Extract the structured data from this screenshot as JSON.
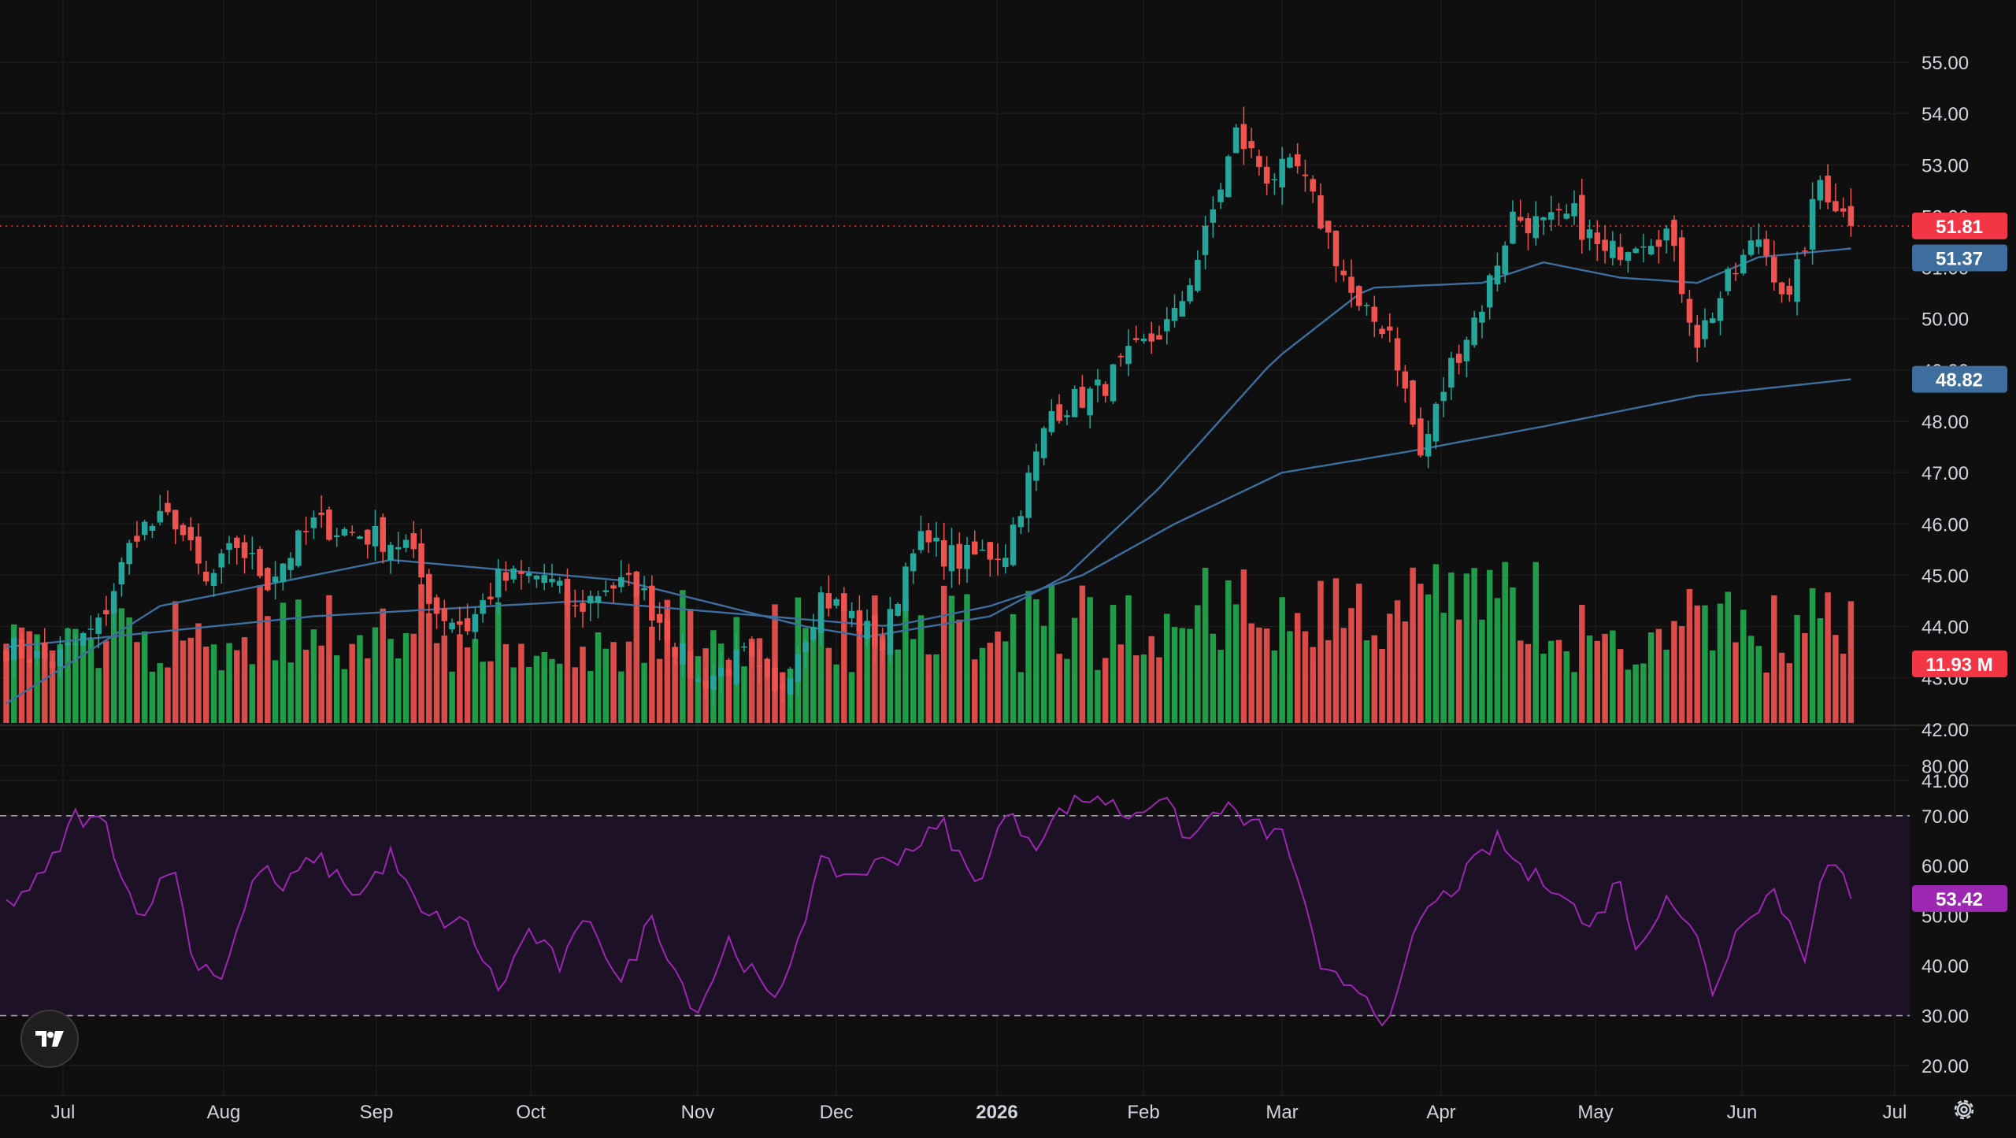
{
  "chart_data": {
    "type": "candlestick",
    "price_axis": {
      "ticks": [
        "55.00",
        "54.00",
        "53.00",
        "52.00",
        "51.00",
        "50.00",
        "49.00",
        "48.00",
        "47.00",
        "46.00",
        "45.00",
        "44.00",
        "43.00",
        "42.00",
        "41.00"
      ],
      "range": [
        40.6,
        55.6
      ]
    },
    "rsi_axis": {
      "ticks": [
        "80.00",
        "70.00",
        "60.00",
        "50.00",
        "40.00",
        "30.00",
        "20.00"
      ],
      "range": [
        17,
        84
      ],
      "band": [
        30,
        70
      ]
    },
    "time_axis": [
      "Jul",
      "Aug",
      "Sep",
      "Oct",
      "Nov",
      "Dec",
      "2026",
      "Feb",
      "Mar",
      "Apr",
      "May",
      "Jun",
      "Jul"
    ],
    "price_anchors": [
      [
        0,
        43.6
      ],
      [
        6,
        43.3
      ],
      [
        12,
        44.0
      ],
      [
        17,
        45.9
      ],
      [
        22,
        46.1
      ],
      [
        26,
        44.8
      ],
      [
        30,
        45.6
      ],
      [
        34,
        44.9
      ],
      [
        40,
        46.0
      ],
      [
        46,
        45.8
      ],
      [
        52,
        45.6
      ],
      [
        56,
        44.3
      ],
      [
        60,
        44.0
      ],
      [
        64,
        44.9
      ],
      [
        70,
        45.0
      ],
      [
        74,
        44.3
      ],
      [
        78,
        44.8
      ],
      [
        82,
        44.8
      ],
      [
        86,
        43.9
      ],
      [
        90,
        42.9
      ],
      [
        96,
        43.4
      ],
      [
        100,
        42.6
      ],
      [
        106,
        44.6
      ],
      [
        110,
        44.2
      ],
      [
        114,
        43.6
      ],
      [
        118,
        45.7
      ],
      [
        124,
        45.3
      ],
      [
        130,
        45.5
      ],
      [
        136,
        48.2
      ],
      [
        142,
        48.6
      ],
      [
        146,
        49.2
      ],
      [
        152,
        50.0
      ],
      [
        156,
        51.6
      ],
      [
        160,
        53.6
      ],
      [
        164,
        52.8
      ],
      [
        168,
        52.9
      ],
      [
        172,
        51.6
      ],
      [
        176,
        50.1
      ],
      [
        180,
        49.8
      ],
      [
        184,
        47.3
      ],
      [
        188,
        49.1
      ],
      [
        192,
        50.3
      ],
      [
        196,
        52.0
      ],
      [
        200,
        51.8
      ],
      [
        204,
        52.0
      ],
      [
        208,
        51.2
      ],
      [
        212,
        51.6
      ],
      [
        216,
        51.7
      ],
      [
        220,
        49.6
      ],
      [
        224,
        50.7
      ],
      [
        228,
        51.6
      ],
      [
        232,
        50.3
      ],
      [
        236,
        52.7
      ],
      [
        240,
        51.81
      ]
    ],
    "ma_fast": [
      [
        0,
        42.5
      ],
      [
        20,
        44.4
      ],
      [
        50,
        45.3
      ],
      [
        80,
        44.9
      ],
      [
        104,
        44.0
      ],
      [
        112,
        43.8
      ],
      [
        128,
        44.2
      ],
      [
        138,
        45.0
      ],
      [
        150,
        46.7
      ],
      [
        165,
        49.2
      ],
      [
        177,
        50.6
      ],
      [
        192,
        50.7
      ],
      [
        200,
        51.1
      ],
      [
        210,
        50.8
      ],
      [
        220,
        50.7
      ],
      [
        228,
        51.2
      ],
      [
        240,
        51.37
      ]
    ],
    "ma_slow": [
      [
        0,
        43.6
      ],
      [
        40,
        44.2
      ],
      [
        75,
        44.5
      ],
      [
        115,
        44.0
      ],
      [
        128,
        44.4
      ],
      [
        140,
        45.0
      ],
      [
        152,
        46.0
      ],
      [
        166,
        47.0
      ],
      [
        182,
        47.4
      ],
      [
        200,
        47.9
      ],
      [
        220,
        48.5
      ],
      [
        240,
        48.82
      ]
    ],
    "volume": {
      "range": [
        0,
        100
      ]
    },
    "rsi_anchors": [
      [
        0,
        52
      ],
      [
        5,
        58
      ],
      [
        9,
        70
      ],
      [
        13,
        68
      ],
      [
        17,
        50
      ],
      [
        22,
        60
      ],
      [
        24,
        42
      ],
      [
        28,
        38
      ],
      [
        33,
        60
      ],
      [
        36,
        55
      ],
      [
        40,
        62
      ],
      [
        46,
        54
      ],
      [
        50,
        62
      ],
      [
        54,
        50
      ],
      [
        60,
        48
      ],
      [
        64,
        35
      ],
      [
        68,
        47
      ],
      [
        72,
        40
      ],
      [
        76,
        50
      ],
      [
        80,
        36
      ],
      [
        84,
        50
      ],
      [
        88,
        36
      ],
      [
        90,
        31
      ],
      [
        94,
        45
      ],
      [
        100,
        32
      ],
      [
        106,
        60
      ],
      [
        110,
        58
      ],
      [
        116,
        62
      ],
      [
        122,
        68
      ],
      [
        126,
        56
      ],
      [
        130,
        70
      ],
      [
        134,
        65
      ],
      [
        138,
        72
      ],
      [
        142,
        74
      ],
      [
        146,
        70
      ],
      [
        150,
        74
      ],
      [
        154,
        65
      ],
      [
        158,
        72
      ],
      [
        162,
        68
      ],
      [
        166,
        66
      ],
      [
        168,
        58
      ],
      [
        171,
        38
      ],
      [
        176,
        36
      ],
      [
        180,
        28
      ],
      [
        184,
        50
      ],
      [
        188,
        55
      ],
      [
        192,
        62
      ],
      [
        194,
        65
      ],
      [
        198,
        58
      ],
      [
        202,
        56
      ],
      [
        206,
        47
      ],
      [
        210,
        58
      ],
      [
        212,
        42
      ],
      [
        216,
        55
      ],
      [
        220,
        45
      ],
      [
        222,
        35
      ],
      [
        226,
        50
      ],
      [
        230,
        55
      ],
      [
        234,
        42
      ],
      [
        236,
        58
      ],
      [
        238,
        60
      ],
      [
        240,
        53.42
      ]
    ],
    "last_price": "51.81",
    "ma_fast_last": "51.37",
    "ma_slow_last": "48.82",
    "volume_last": "11.93 M",
    "rsi_last": "53.42",
    "colors": {
      "up": "#26a69a",
      "up_volume": "#22ab4f",
      "down": "#ef5350",
      "ma": "#3d6e9e",
      "rsi_line": "#9c27b0",
      "rsi_band": "#1d1126",
      "price_tag": "#f23645",
      "ma_tag": "#2962ff",
      "rsi_tag": "#9c27b0",
      "grid": "#1b1b1b"
    }
  }
}
